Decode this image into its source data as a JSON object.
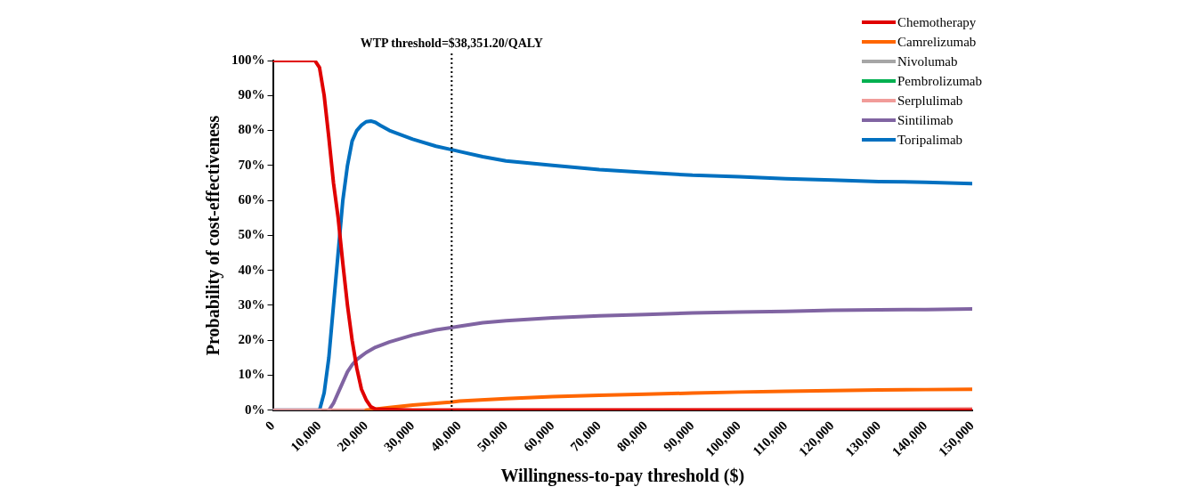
{
  "chart_data": {
    "type": "line",
    "xlabel": "Willingness-to-pay threshold ($)",
    "ylabel": "Probability of cost-effectiveness",
    "xlim": [
      0,
      150000
    ],
    "xticks": [
      {
        "value": 0,
        "label": "0"
      },
      {
        "value": 10000,
        "label": "10,000"
      },
      {
        "value": 20000,
        "label": "20,000"
      },
      {
        "value": 30000,
        "label": "30,000"
      },
      {
        "value": 40000,
        "label": "40,000"
      },
      {
        "value": 50000,
        "label": "50,000"
      },
      {
        "value": 60000,
        "label": "60,000"
      },
      {
        "value": 70000,
        "label": "70,000"
      },
      {
        "value": 80000,
        "label": "80,000"
      },
      {
        "value": 90000,
        "label": "90,000"
      },
      {
        "value": 100000,
        "label": "100,000"
      },
      {
        "value": 110000,
        "label": "110,000"
      },
      {
        "value": 120000,
        "label": "120,000"
      },
      {
        "value": 130000,
        "label": "130,000"
      },
      {
        "value": 140000,
        "label": "140,000"
      },
      {
        "value": 150000,
        "label": "150,000"
      }
    ],
    "ylim": [
      0,
      100
    ],
    "yticks": [
      {
        "value": 0,
        "label": "0%"
      },
      {
        "value": 10,
        "label": "10%"
      },
      {
        "value": 20,
        "label": "20%"
      },
      {
        "value": 30,
        "label": "30%"
      },
      {
        "value": 40,
        "label": "40%"
      },
      {
        "value": 50,
        "label": "50%"
      },
      {
        "value": 60,
        "label": "60%"
      },
      {
        "value": 70,
        "label": "70%"
      },
      {
        "value": 80,
        "label": "80%"
      },
      {
        "value": 90,
        "label": "90%"
      },
      {
        "value": 100,
        "label": "100%"
      }
    ],
    "grid": false,
    "legend": "top right",
    "marker": "none",
    "line_style": "solid",
    "ref_lines": [
      {
        "axis": "x",
        "value": 38351.2,
        "label": "WTP threshold=$38,351.20/QALY",
        "line_style": "dotted",
        "color": "#000000"
      }
    ],
    "series": [
      {
        "name": "Chemotherapy",
        "color": "#e00000",
        "x": [
          0,
          9000,
          10000,
          11000,
          12000,
          13000,
          14000,
          15000,
          16000,
          17000,
          18000,
          19000,
          20000,
          21000,
          22000,
          30000,
          150000
        ],
        "values": [
          100,
          100,
          98,
          90,
          78,
          65,
          55,
          42,
          30,
          20,
          12,
          6,
          3,
          1,
          0.3,
          0,
          0
        ]
      },
      {
        "name": "Camrelizumab",
        "color": "#ff6600",
        "x": [
          20000,
          25000,
          30000,
          38000,
          40000,
          50000,
          60000,
          70000,
          80000,
          90000,
          100000,
          110000,
          120000,
          130000,
          140000,
          150000
        ],
        "values": [
          0,
          0.8,
          1.5,
          2.3,
          2.6,
          3.3,
          3.9,
          4.3,
          4.6,
          4.9,
          5.2,
          5.4,
          5.6,
          5.8,
          5.9,
          6
        ]
      },
      {
        "name": "Nivolumab",
        "color": "#a6a6a6",
        "values": [
          null
        ]
      },
      {
        "name": "Pembrolizumab",
        "color": "#00b050",
        "values": [
          null
        ]
      },
      {
        "name": "Serplulimab",
        "color": "#f19c99",
        "x": [
          0,
          20000,
          150000
        ],
        "values": [
          0,
          0,
          0.4
        ]
      },
      {
        "name": "Sintilimab",
        "color": "#8064a2",
        "x": [
          12000,
          13000,
          14000,
          15000,
          16000,
          17000,
          18000,
          19000,
          20000,
          22000,
          25000,
          30000,
          35000,
          40000,
          45000,
          50000,
          60000,
          70000,
          80000,
          90000,
          100000,
          110000,
          120000,
          130000,
          140000,
          150000
        ],
        "values": [
          0,
          2,
          5,
          8,
          11,
          13,
          14.5,
          15.5,
          16.5,
          18,
          19.5,
          21.5,
          23,
          24,
          25,
          25.6,
          26.4,
          27,
          27.4,
          27.8,
          28.1,
          28.3,
          28.6,
          28.7,
          28.8,
          29
        ]
      },
      {
        "name": "Toripalimab",
        "color": "#0070c0",
        "x": [
          0,
          10000,
          11000,
          12000,
          13000,
          14000,
          15000,
          16000,
          17000,
          18000,
          19000,
          20000,
          21000,
          22000,
          23000,
          25000,
          30000,
          35000,
          38351,
          40000,
          45000,
          50000,
          60000,
          70000,
          80000,
          90000,
          100000,
          110000,
          120000,
          130000,
          140000,
          150000
        ],
        "values": [
          0,
          0,
          5,
          15,
          30,
          45,
          60,
          70,
          77,
          80,
          81.5,
          82.5,
          82.7,
          82.3,
          81.5,
          80,
          77.5,
          75.5,
          74.5,
          74,
          72.5,
          71.3,
          70,
          68.8,
          68,
          67.2,
          66.8,
          66.2,
          65.8,
          65.4,
          65.2,
          64.8
        ]
      }
    ]
  }
}
